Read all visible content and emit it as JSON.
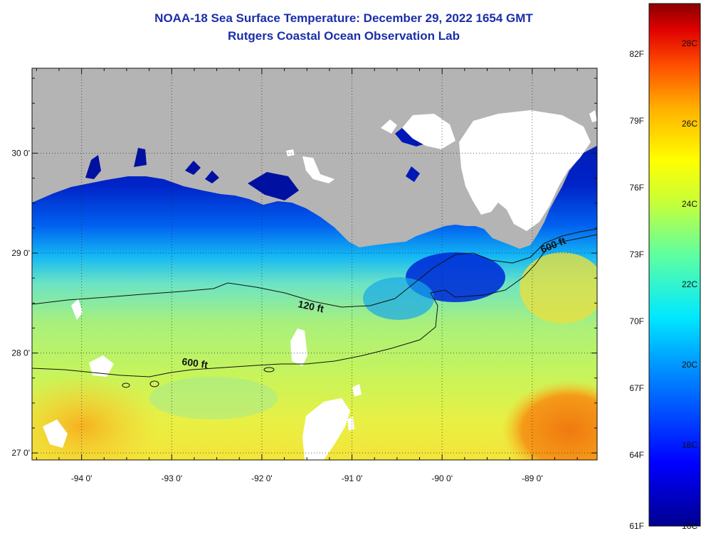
{
  "header": {
    "title": "NOAA-18 Sea Surface Temperature:  December 29, 2022 1654 GMT",
    "subtitle": "Rutgers Coastal Ocean Observation Lab"
  },
  "map": {
    "lon_range": [
      -94.55,
      -88.28
    ],
    "lat_range": [
      26.93,
      30.85
    ],
    "lon_ticks": [
      {
        "value": -94,
        "label": "-94 0'"
      },
      {
        "value": -93,
        "label": "-93 0'"
      },
      {
        "value": -92,
        "label": "-92 0'"
      },
      {
        "value": -91,
        "label": "-91 0'"
      },
      {
        "value": -90,
        "label": "-90 0'"
      },
      {
        "value": -89,
        "label": "-89 0'"
      }
    ],
    "lat_ticks": [
      {
        "value": 27,
        "label": "27 0'"
      },
      {
        "value": 28,
        "label": "28 0'"
      },
      {
        "value": 29,
        "label": "29 0'"
      },
      {
        "value": 30,
        "label": "30 0'"
      }
    ],
    "isobaths": [
      {
        "label": "120 ft"
      },
      {
        "label": "600 ft"
      },
      {
        "label": "600 ft"
      }
    ],
    "colors": {
      "land": "#b4b4b4",
      "cloud": "#ffffff",
      "frame": "#111111"
    }
  },
  "colorbar": {
    "fahrenheit_labels": [
      "82F",
      "79F",
      "76F",
      "73F",
      "70F",
      "67F",
      "64F",
      "61F"
    ],
    "celsius_labels": [
      "28C",
      "26C",
      "24C",
      "22C",
      "20C",
      "18C",
      "16C"
    ],
    "range_c": [
      16,
      29
    ]
  }
}
